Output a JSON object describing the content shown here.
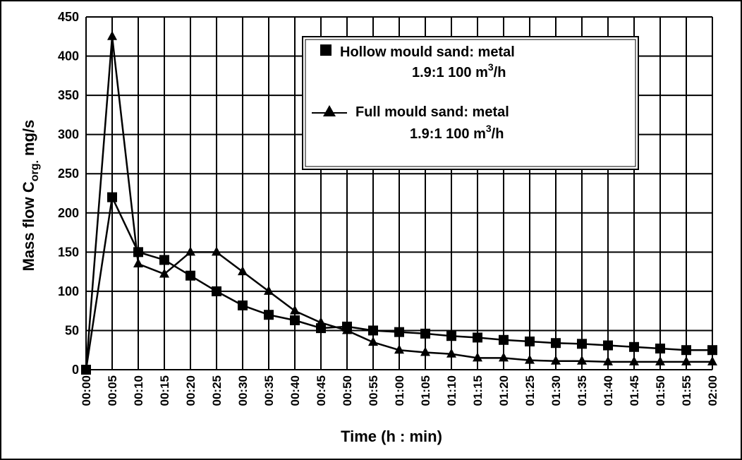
{
  "chart_data": {
    "type": "line",
    "title": "",
    "xlabel": "Time  (h : min)",
    "ylabel": {
      "prefix": "Mass flow C",
      "subscript": "org.",
      "suffix": " mg/s"
    },
    "ylim": [
      0,
      450
    ],
    "yticks": [
      "0",
      "50",
      "100",
      "150",
      "200",
      "250",
      "300",
      "350",
      "400",
      "450"
    ],
    "categories": [
      "00:00",
      "00:05",
      "00:10",
      "00:15",
      "00:20",
      "00:25",
      "00:30",
      "00:35",
      "00:40",
      "00:45",
      "00:50",
      "00:55",
      "01:00",
      "01:05",
      "01:10",
      "01:15",
      "01:20",
      "01:25",
      "01:30",
      "01:35",
      "01:40",
      "01:45",
      "01:50",
      "01:55",
      "02:00"
    ],
    "grid": true,
    "legend_position": "top-right",
    "series": [
      {
        "name": "Hollow mould  sand: metal",
        "name_line2": "1.9:1 100 m",
        "name_sup": "3",
        "name_suffix": "/h",
        "marker": "square",
        "color": "#000000",
        "values": [
          0,
          220,
          150,
          140,
          120,
          100,
          82,
          70,
          63,
          53,
          55,
          50,
          48,
          46,
          43,
          41,
          38,
          36,
          34,
          33,
          31,
          29,
          27,
          25,
          25
        ]
      },
      {
        "name": "Full mould  sand: metal",
        "name_line2": "1.9:1 100 m",
        "name_sup": "3",
        "name_suffix": "/h",
        "marker": "triangle",
        "color": "#000000",
        "values": [
          0,
          425,
          135,
          122,
          150,
          150,
          125,
          100,
          75,
          60,
          50,
          35,
          25,
          22,
          20,
          15,
          15,
          12,
          11,
          11,
          10,
          10,
          10,
          10,
          10
        ]
      }
    ]
  }
}
